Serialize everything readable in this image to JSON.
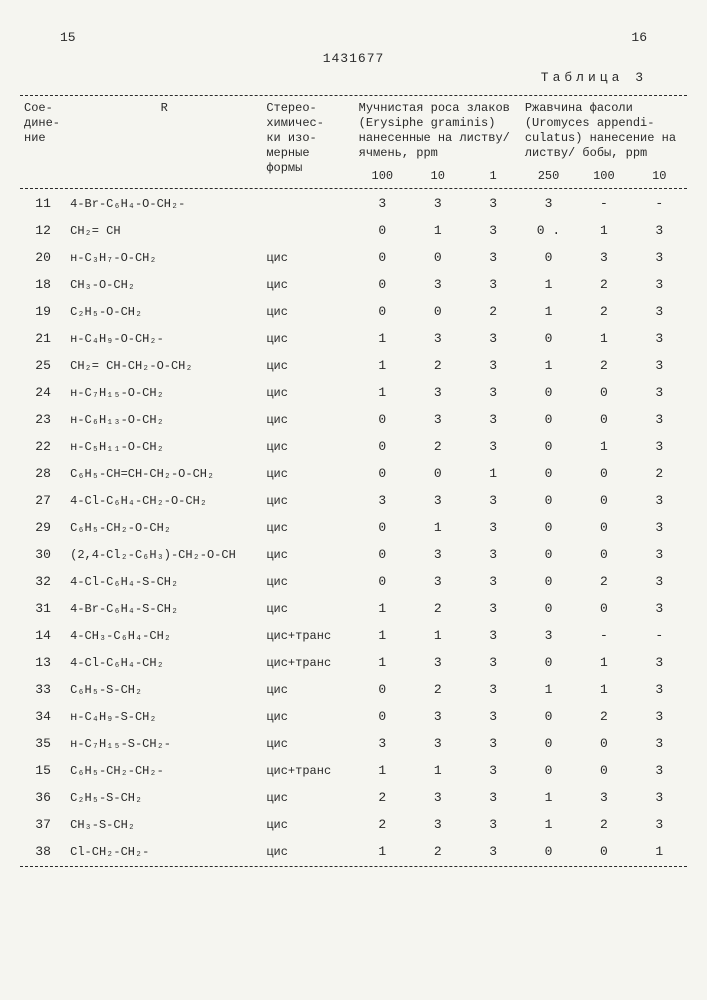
{
  "header": {
    "page_left": "15",
    "page_right": "16",
    "doc_number": "1431677",
    "table_label": "Таблица 3"
  },
  "columns": {
    "compound": "Сое-\nдине-\nние",
    "r": "R",
    "form": "Стерео-\nхимичес-\nки изо-\nмерные\nформы",
    "group_a": "Мучнистая роса злаков (Erysiphe graminis) нанесенные на листву/ ячмень, ppm",
    "group_b": "Ржавчина фасоли (Uromyces appendi- culatus) нанесение на листву/ бобы, ppm",
    "a1": "100",
    "a2": "10",
    "a3": "1",
    "b1": "250",
    "b2": "100",
    "b3": "10"
  },
  "rows": [
    {
      "id": "11",
      "r": "4-Br-C₆H₄-O-CH₂-",
      "form": "",
      "v": [
        "3",
        "3",
        "3",
        "3",
        "-",
        "-"
      ]
    },
    {
      "id": "12",
      "r": "CH₂= CH",
      "form": "",
      "v": [
        "0",
        "1",
        "3",
        "0 .",
        "1",
        "3"
      ]
    },
    {
      "id": "20",
      "r": "н-C₃H₇-O-CH₂",
      "form": "цис",
      "v": [
        "0",
        "0",
        "3",
        "0",
        "3",
        "3"
      ]
    },
    {
      "id": "18",
      "r": "CH₃-O-CH₂",
      "form": "цис",
      "v": [
        "0",
        "3",
        "3",
        "1",
        "2",
        "3"
      ]
    },
    {
      "id": "19",
      "r": "C₂H₅-O-CH₂",
      "form": "цис",
      "v": [
        "0",
        "0",
        "2",
        "1",
        "2",
        "3"
      ]
    },
    {
      "id": "21",
      "r": "н-C₄H₉-O-CH₂-",
      "form": "цис",
      "v": [
        "1",
        "3",
        "3",
        "0",
        "1",
        "3"
      ]
    },
    {
      "id": "25",
      "r": "CH₂= CH-CH₂-O-CH₂",
      "form": "цис",
      "v": [
        "1",
        "2",
        "3",
        "1",
        "2",
        "3"
      ]
    },
    {
      "id": "24",
      "r": "н-C₇H₁₅-O-CH₂",
      "form": "цис",
      "v": [
        "1",
        "3",
        "3",
        "0",
        "0",
        "3"
      ]
    },
    {
      "id": "23",
      "r": "н-C₆H₁₃-O-CH₂",
      "form": "цис",
      "v": [
        "0",
        "3",
        "3",
        "0",
        "0",
        "3"
      ]
    },
    {
      "id": "22",
      "r": "н-C₅H₁₁-O-CH₂",
      "form": "цис",
      "v": [
        "0",
        "2",
        "3",
        "0",
        "1",
        "3"
      ]
    },
    {
      "id": "28",
      "r": "C₆H₅-CH=CH-CH₂-O-CH₂",
      "form": "цис",
      "v": [
        "0",
        "0",
        "1",
        "0",
        "0",
        "2"
      ]
    },
    {
      "id": "27",
      "r": "4-Cl-C₆H₄-CH₂-O-CH₂",
      "form": "цис",
      "v": [
        "3",
        "3",
        "3",
        "0",
        "0",
        "3"
      ]
    },
    {
      "id": "29",
      "r": "C₆H₅-CH₂-O-CH₂",
      "form": "цис",
      "v": [
        "0",
        "1",
        "3",
        "0",
        "0",
        "3"
      ]
    },
    {
      "id": "30",
      "r": "(2,4-Cl₂-C₆H₃)-CH₂-O-CH",
      "form": "цис",
      "v": [
        "0",
        "3",
        "3",
        "0",
        "0",
        "3"
      ]
    },
    {
      "id": "32",
      "r": "4-Cl-C₆H₄-S-CH₂",
      "form": "цис",
      "v": [
        "0",
        "3",
        "3",
        "0",
        "2",
        "3"
      ]
    },
    {
      "id": "31",
      "r": "4-Br-C₆H₄-S-CH₂",
      "form": "цис",
      "v": [
        "1",
        "2",
        "3",
        "0",
        "0",
        "3"
      ]
    },
    {
      "id": "14",
      "r": "4-CH₃-C₆H₄-CH₂",
      "form": "цис+транс",
      "v": [
        "1",
        "1",
        "3",
        "3",
        "-",
        "-"
      ]
    },
    {
      "id": "13",
      "r": "4-Cl-C₆H₄-CH₂",
      "form": "цис+транс",
      "v": [
        "1",
        "3",
        "3",
        "0",
        "1",
        "3"
      ]
    },
    {
      "id": "33",
      "r": "C₆H₅-S-CH₂",
      "form": "цис",
      "v": [
        "0",
        "2",
        "3",
        "1",
        "1",
        "3"
      ]
    },
    {
      "id": "34",
      "r": "н-C₄H₉-S-CH₂",
      "form": "цис",
      "v": [
        "0",
        "3",
        "3",
        "0",
        "2",
        "3"
      ]
    },
    {
      "id": "35",
      "r": "н-C₇H₁₅-S-CH₂-",
      "form": "цис",
      "v": [
        "3",
        "3",
        "3",
        "0",
        "0",
        "3"
      ]
    },
    {
      "id": "15",
      "r": "C₆H₅-CH₂-CH₂-",
      "form": "цис+транс",
      "v": [
        "1",
        "1",
        "3",
        "0",
        "0",
        "3"
      ]
    },
    {
      "id": "36",
      "r": "C₂H₅-S-CH₂",
      "form": "цис",
      "v": [
        "2",
        "3",
        "3",
        "1",
        "3",
        "3"
      ]
    },
    {
      "id": "37",
      "r": "CH₃-S-CH₂",
      "form": "цис",
      "v": [
        "2",
        "3",
        "3",
        "1",
        "2",
        "3"
      ]
    },
    {
      "id": "38",
      "r": "Cl-CH₂-CH₂-",
      "form": "цис",
      "v": [
        "1",
        "2",
        "3",
        "0",
        "0",
        "1"
      ]
    }
  ]
}
